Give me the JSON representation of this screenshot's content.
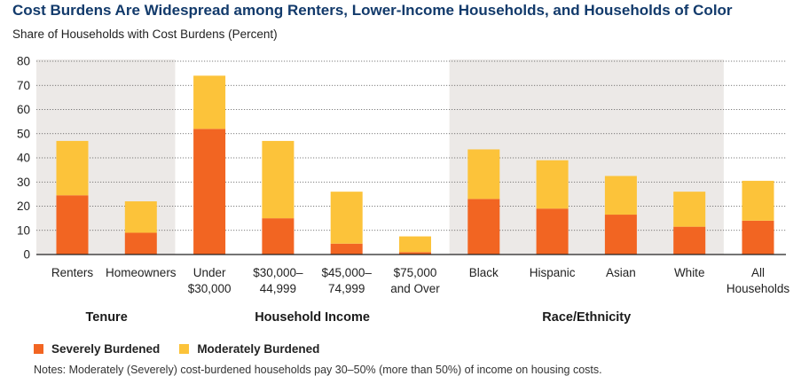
{
  "header": {
    "title": "Cost Burdens Are Widespread among Renters, Lower-Income Households, and Households of Color",
    "subtitle": "Share of Households with Cost Burdens (Percent)"
  },
  "legend": {
    "severe_label": "Severely Burdened",
    "moderate_label": "Moderately Burdened"
  },
  "note": "Notes: Moderately (Severely) cost-burdened households pay 30–50% (more than 50%) of income on housing costs.",
  "colors": {
    "severe": "#f26522",
    "moderate": "#fcc33a",
    "shade": "#ece9e7",
    "grid": "#555555",
    "title": "#123a6b"
  },
  "chart_data": {
    "type": "bar",
    "stacked": true,
    "ylim": [
      0,
      80
    ],
    "yticks": [
      0,
      10,
      20,
      30,
      40,
      50,
      60,
      70,
      80
    ],
    "categories": [
      [
        "Renters"
      ],
      [
        "Homeowners"
      ],
      [
        "Under",
        "$30,000"
      ],
      [
        "$30,000–",
        "44,999"
      ],
      [
        "$45,000–",
        "74,999"
      ],
      [
        "$75,000",
        "and Over"
      ],
      [
        "Black"
      ],
      [
        "Hispanic"
      ],
      [
        "Asian"
      ],
      [
        "White"
      ],
      [
        "All",
        "Households"
      ]
    ],
    "series": [
      {
        "name": "Severely Burdened",
        "values": [
          24.5,
          9,
          52,
          15,
          4.5,
          1,
          23,
          19,
          16.5,
          11.5,
          14
        ]
      },
      {
        "name": "Moderately Burdened",
        "values": [
          22.5,
          13,
          22,
          32,
          21.5,
          6.5,
          20.5,
          20,
          16,
          14.5,
          16.5
        ]
      }
    ],
    "groups": [
      {
        "label": "Tenure",
        "start": 0,
        "end": 1,
        "shaded": true
      },
      {
        "label": "Household Income",
        "start": 2,
        "end": 5,
        "shaded": false
      },
      {
        "label": "Race/Ethnicity",
        "start": 6,
        "end": 9,
        "shaded": true
      },
      {
        "label": "",
        "start": 10,
        "end": 10,
        "shaded": false
      }
    ]
  }
}
